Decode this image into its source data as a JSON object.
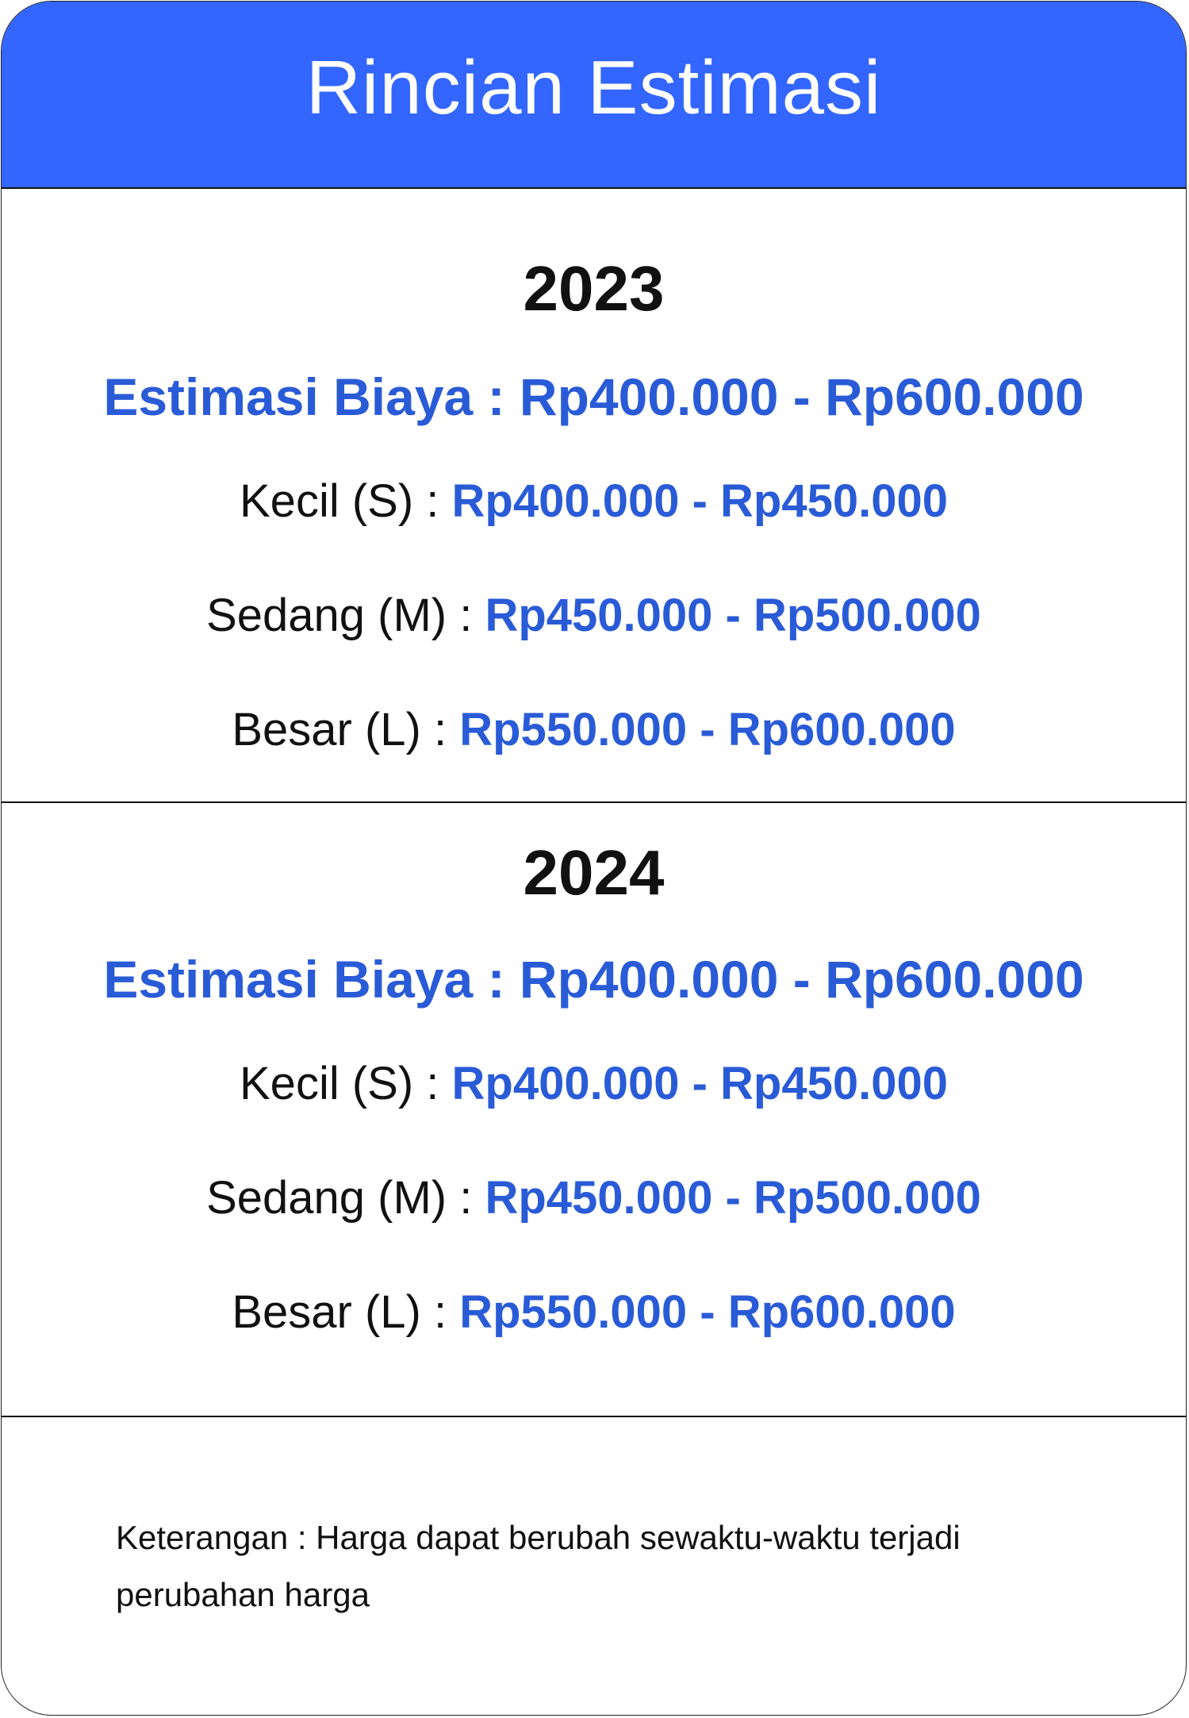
{
  "header": {
    "title": "Rincian Estimasi"
  },
  "sections": [
    {
      "year": "2023",
      "estimate_label": "Estimasi Biaya : Rp400.000 - Rp600.000",
      "rows": [
        {
          "label": "Kecil (S) : ",
          "range": "Rp400.000 - Rp450.000"
        },
        {
          "label": "Sedang (M) : ",
          "range": "Rp450.000 - Rp500.000"
        },
        {
          "label": "Besar (L) : ",
          "range": "Rp550.000 - Rp600.000"
        }
      ]
    },
    {
      "year": "2024",
      "estimate_label": "Estimasi Biaya : Rp400.000 - Rp600.000",
      "rows": [
        {
          "label": "Kecil (S) : ",
          "range": "Rp400.000 - Rp450.000"
        },
        {
          "label": "Sedang (M) : ",
          "range": "Rp450.000 - Rp500.000"
        },
        {
          "label": "Besar (L) : ",
          "range": "Rp550.000 - Rp600.000"
        }
      ]
    }
  ],
  "note": "Keterangan : Harga dapat berubah sewaktu-waktu terjadi perubahan harga",
  "colors": {
    "header_bg": "#3366ff",
    "accent_text": "#2a5bd7"
  }
}
